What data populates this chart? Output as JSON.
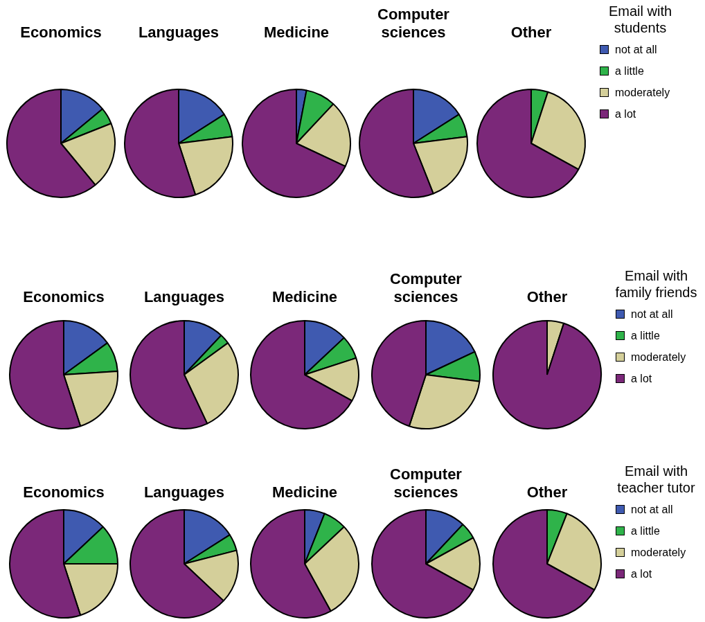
{
  "chart_data": [
    {
      "type": "pie",
      "title": "Economics",
      "categories": [
        null,
        null,
        null,
        null
      ],
      "values": [
        14,
        5,
        20,
        61
      ],
      "colors": [
        "#3f5ab0",
        "#2fb34a",
        "#d4cf9a",
        "#7b2879"
      ],
      "legend": false
    },
    {
      "type": "pie",
      "title": "Languages",
      "categories": [
        null,
        null,
        null,
        null
      ],
      "values": [
        16,
        7,
        22,
        55
      ],
      "colors": [
        "#3f5ab0",
        "#2fb34a",
        "#d4cf9a",
        "#7b2879"
      ],
      "legend": false
    },
    {
      "type": "pie",
      "title": "Medicine",
      "categories": [
        null,
        null,
        null,
        null
      ],
      "values": [
        3,
        9,
        20,
        68
      ],
      "colors": [
        "#3f5ab0",
        "#2fb34a",
        "#d4cf9a",
        "#7b2879"
      ],
      "legend": false
    },
    {
      "type": "pie",
      "title": "Computer sciences",
      "categories": [
        null,
        null,
        null,
        null
      ],
      "values": [
        16,
        7,
        21,
        56
      ],
      "colors": [
        "#3f5ab0",
        "#2fb34a",
        "#d4cf9a",
        "#7b2879"
      ],
      "legend": false
    },
    {
      "type": "pie",
      "title": "Other",
      "categories": [
        "not at all",
        "a little",
        "moderately",
        "a lot"
      ],
      "values": [
        0,
        5,
        28,
        67
      ],
      "colors": [
        "#3f5ab0",
        "#2fb34a",
        "#d4cf9a",
        "#7b2879"
      ],
      "legend": "right",
      "legend_title": "Email with students"
    },
    {
      "type": "pie",
      "title": "Economics",
      "categories": [
        null,
        null,
        null,
        null
      ],
      "values": [
        15,
        9,
        21,
        55
      ],
      "colors": [
        "#3f5ab0",
        "#2fb34a",
        "#d4cf9a",
        "#7b2879"
      ],
      "legend": false
    },
    {
      "type": "pie",
      "title": "Languages",
      "categories": [
        null,
        null,
        null,
        null
      ],
      "values": [
        12,
        3,
        28,
        57
      ],
      "colors": [
        "#3f5ab0",
        "#2fb34a",
        "#d4cf9a",
        "#7b2879"
      ],
      "legend": false
    },
    {
      "type": "pie",
      "title": "Medicine",
      "categories": [
        null,
        null,
        null,
        null
      ],
      "values": [
        13,
        7,
        13,
        67
      ],
      "colors": [
        "#3f5ab0",
        "#2fb34a",
        "#d4cf9a",
        "#7b2879"
      ],
      "legend": false
    },
    {
      "type": "pie",
      "title": "Computer sciences",
      "categories": [
        null,
        null,
        null,
        null
      ],
      "values": [
        18,
        9,
        28,
        45
      ],
      "colors": [
        "#3f5ab0",
        "#2fb34a",
        "#d4cf9a",
        "#7b2879"
      ],
      "legend": false
    },
    {
      "type": "pie",
      "title": "Other",
      "categories": [
        "not at all",
        "a little",
        "moderately",
        "a lot"
      ],
      "values": [
        0,
        0,
        5,
        95
      ],
      "colors": [
        "#3f5ab0",
        "#2fb34a",
        "#d4cf9a",
        "#7b2879"
      ],
      "legend": "right",
      "legend_title": "Email with family friends"
    },
    {
      "type": "pie",
      "title": "Economics",
      "categories": [
        null,
        null,
        null,
        null
      ],
      "values": [
        13,
        12,
        20,
        55
      ],
      "colors": [
        "#3f5ab0",
        "#2fb34a",
        "#d4cf9a",
        "#7b2879"
      ],
      "legend": false
    },
    {
      "type": "pie",
      "title": "Languages",
      "categories": [
        null,
        null,
        null,
        null
      ],
      "values": [
        16,
        5,
        16,
        63
      ],
      "colors": [
        "#3f5ab0",
        "#2fb34a",
        "#d4cf9a",
        "#7b2879"
      ],
      "legend": false
    },
    {
      "type": "pie",
      "title": "Medicine",
      "categories": [
        null,
        null,
        null,
        null
      ],
      "values": [
        6,
        7,
        29,
        58
      ],
      "colors": [
        "#3f5ab0",
        "#2fb34a",
        "#d4cf9a",
        "#7b2879"
      ],
      "legend": false
    },
    {
      "type": "pie",
      "title": "Computer sciences",
      "categories": [
        null,
        null,
        null,
        null
      ],
      "values": [
        12,
        5,
        16,
        67
      ],
      "colors": [
        "#3f5ab0",
        "#2fb34a",
        "#d4cf9a",
        "#7b2879"
      ],
      "legend": false
    },
    {
      "type": "pie",
      "title": "Other",
      "categories": [
        "not at all",
        "a little",
        "moderately",
        "a lot"
      ],
      "values": [
        0,
        6,
        27,
        67
      ],
      "colors": [
        "#3f5ab0",
        "#2fb34a",
        "#d4cf9a",
        "#7b2879"
      ],
      "legend": "right",
      "legend_title": "Email with teacher tutor"
    }
  ]
}
